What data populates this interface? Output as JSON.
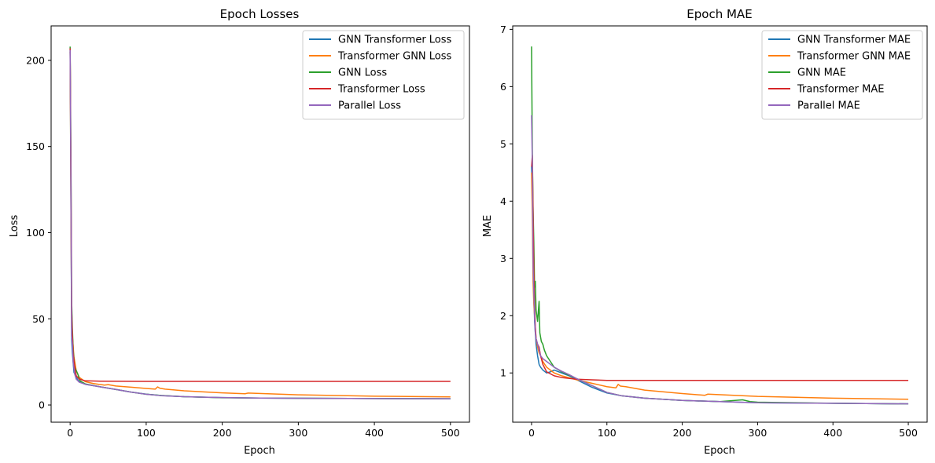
{
  "chart_data": [
    {
      "type": "line",
      "title": "Epoch Losses",
      "xlabel": "Epoch",
      "ylabel": "Loss",
      "xlim": [
        -25,
        525
      ],
      "ylim": [
        -10,
        220
      ],
      "xticks": [
        0,
        100,
        200,
        300,
        400,
        500
      ],
      "yticks": [
        0,
        50,
        100,
        150,
        200
      ],
      "legend_position": "top-right",
      "grid": false,
      "series": [
        {
          "name": "GNN Transformer Loss",
          "color": "#1f77b4",
          "x": [
            0,
            1,
            2,
            3,
            5,
            8,
            12,
            20,
            40,
            60,
            80,
            100,
            120,
            150,
            200,
            250,
            300,
            400,
            500
          ],
          "y": [
            205,
            120,
            38,
            30,
            19,
            16,
            13.5,
            12,
            10.5,
            9,
            7.5,
            6.3,
            5.5,
            4.8,
            4.3,
            4.0,
            3.9,
            3.7,
            3.6
          ]
        },
        {
          "name": "Transformer GNN Loss",
          "color": "#ff7f0e",
          "x": [
            0,
            1,
            2,
            3,
            5,
            8,
            12,
            20,
            30,
            45,
            50,
            60,
            80,
            100,
            112,
            115,
            118,
            125,
            150,
            200,
            230,
            234,
            300,
            400,
            500
          ],
          "y": [
            205,
            120,
            45,
            40,
            28,
            20,
            16,
            13.5,
            12.5,
            11.5,
            11.8,
            11,
            10.3,
            9.6,
            9.2,
            10.5,
            9.7,
            9.2,
            8.2,
            7,
            6.5,
            6.9,
            5.9,
            5.1,
            4.7
          ]
        },
        {
          "name": "GNN Loss",
          "color": "#2ca02c",
          "x": [
            0,
            1,
            2,
            3,
            4,
            6,
            8,
            10,
            13,
            20,
            40,
            60,
            80,
            100,
            120,
            150,
            200,
            250,
            300,
            400,
            500
          ],
          "y": [
            208,
            150,
            60,
            44,
            32,
            22,
            20,
            18,
            14,
            12.2,
            10.5,
            9,
            7.5,
            6.2,
            5.5,
            4.8,
            4.2,
            4.0,
            3.9,
            3.7,
            3.6
          ]
        },
        {
          "name": "Transformer Loss",
          "color": "#d62728",
          "x": [
            0,
            1,
            2,
            3,
            4,
            6,
            8,
            12,
            20,
            40,
            100,
            200,
            300,
            400,
            500
          ],
          "y": [
            207,
            140,
            55,
            40,
            30,
            22,
            17,
            15,
            14,
            13.8,
            13.7,
            13.7,
            13.7,
            13.7,
            13.7
          ]
        },
        {
          "name": "Parallel Loss",
          "color": "#9467bd",
          "x": [
            0,
            1,
            2,
            3,
            4,
            6,
            8,
            12,
            20,
            40,
            60,
            80,
            100,
            120,
            150,
            200,
            250,
            300,
            400,
            500
          ],
          "y": [
            206,
            130,
            40,
            35,
            25,
            18,
            15,
            13.2,
            12,
            10.5,
            9,
            7.5,
            6.2,
            5.4,
            4.8,
            4.3,
            4.0,
            3.9,
            3.7,
            3.6
          ]
        }
      ]
    },
    {
      "type": "line",
      "title": "Epoch MAE",
      "xlabel": "Epoch",
      "ylabel": "MAE",
      "xlim": [
        -25,
        525
      ],
      "ylim": [
        0.14,
        7.06
      ],
      "xticks": [
        0,
        100,
        200,
        300,
        400,
        500
      ],
      "yticks": [
        1,
        2,
        3,
        4,
        5,
        6,
        7
      ],
      "legend_position": "top-right",
      "grid": false,
      "series": [
        {
          "name": "GNN Transformer MAE",
          "color": "#1f77b4",
          "x": [
            0,
            1,
            2,
            3,
            4,
            5,
            6,
            8,
            10,
            12,
            15,
            20,
            25,
            30,
            40,
            50,
            60,
            80,
            100,
            120,
            150,
            200,
            250,
            300,
            400,
            500
          ],
          "y": [
            4.6,
            4.2,
            2.8,
            2.5,
            1.9,
            1.7,
            1.5,
            1.3,
            1.15,
            1.1,
            1.05,
            1.0,
            1.02,
            1.05,
            1.0,
            0.95,
            0.88,
            0.75,
            0.65,
            0.6,
            0.56,
            0.52,
            0.5,
            0.48,
            0.47,
            0.46
          ]
        },
        {
          "name": "Transformer GNN MAE",
          "color": "#ff7f0e",
          "x": [
            0,
            1,
            2,
            3,
            4,
            5,
            6,
            8,
            10,
            12,
            15,
            20,
            30,
            40,
            60,
            80,
            100,
            112,
            115,
            118,
            125,
            150,
            200,
            230,
            234,
            300,
            400,
            500
          ],
          "y": [
            4.5,
            3.8,
            2.6,
            2.2,
            2.0,
            1.8,
            1.6,
            1.45,
            1.35,
            1.3,
            1.2,
            1.1,
            1.0,
            0.95,
            0.88,
            0.82,
            0.76,
            0.74,
            0.8,
            0.77,
            0.76,
            0.7,
            0.64,
            0.61,
            0.63,
            0.59,
            0.56,
            0.54
          ]
        },
        {
          "name": "GNN MAE",
          "color": "#2ca02c",
          "x": [
            0,
            1,
            2,
            3,
            4,
            5,
            6,
            8,
            10,
            11,
            13,
            15,
            17,
            20,
            25,
            30,
            40,
            50,
            60,
            80,
            100,
            120,
            150,
            200,
            250,
            280,
            290,
            300,
            400,
            500
          ],
          "y": [
            6.7,
            4.9,
            3.9,
            3.3,
            2.5,
            2.6,
            2.1,
            1.9,
            2.25,
            1.7,
            1.55,
            1.5,
            1.4,
            1.3,
            1.2,
            1.1,
            1.02,
            0.96,
            0.9,
            0.78,
            0.66,
            0.6,
            0.56,
            0.52,
            0.5,
            0.53,
            0.5,
            0.49,
            0.47,
            0.46
          ]
        },
        {
          "name": "Transformer MAE",
          "color": "#d62728",
          "x": [
            0,
            1,
            2,
            3,
            4,
            5,
            6,
            8,
            10,
            12,
            15,
            20,
            30,
            40,
            60,
            80,
            100,
            200,
            300,
            400,
            500
          ],
          "y": [
            4.6,
            4.8,
            3.8,
            2.8,
            2.2,
            1.8,
            1.6,
            1.5,
            1.45,
            1.3,
            1.15,
            1.02,
            0.95,
            0.92,
            0.89,
            0.88,
            0.87,
            0.87,
            0.87,
            0.87,
            0.87
          ]
        },
        {
          "name": "Parallel MAE",
          "color": "#9467bd",
          "x": [
            0,
            1,
            2,
            3,
            4,
            5,
            6,
            8,
            10,
            12,
            15,
            20,
            25,
            30,
            40,
            50,
            60,
            80,
            100,
            120,
            150,
            200,
            250,
            300,
            400,
            500
          ],
          "y": [
            5.5,
            4.7,
            2.9,
            2.4,
            2.0,
            1.7,
            1.6,
            1.5,
            1.4,
            1.3,
            1.25,
            1.2,
            1.15,
            1.1,
            1.03,
            0.97,
            0.9,
            0.78,
            0.66,
            0.6,
            0.56,
            0.52,
            0.5,
            0.48,
            0.47,
            0.46
          ]
        }
      ]
    }
  ]
}
